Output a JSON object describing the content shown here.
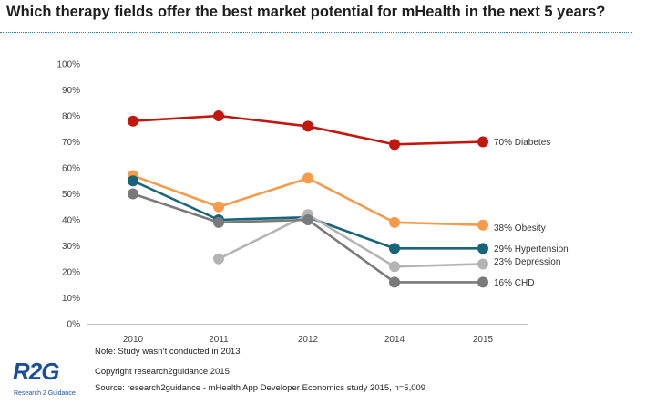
{
  "title": "Which therapy fields offer the best market potential for mHealth in the next 5 years?",
  "chart_data": {
    "type": "line",
    "x": [
      "2010",
      "2011",
      "2012",
      "2014",
      "2015"
    ],
    "ylim": [
      0,
      100
    ],
    "yticks": [
      "0%",
      "10%",
      "20%",
      "30%",
      "40%",
      "50%",
      "60%",
      "70%",
      "80%",
      "90%",
      "100%"
    ],
    "grid": false,
    "series": [
      {
        "name": "Diabetes",
        "end_label": "70%  Diabetes",
        "color": "#c0170f",
        "values": [
          78,
          80,
          76,
          69,
          70
        ]
      },
      {
        "name": "Obesity",
        "end_label": "38%  Obesity",
        "color": "#f79a4a",
        "values": [
          57,
          45,
          56,
          39,
          38
        ]
      },
      {
        "name": "Hypertension",
        "end_label": "29%  Hypertension",
        "color": "#17657a",
        "values": [
          55,
          40,
          41,
          29,
          29
        ]
      },
      {
        "name": "Depression",
        "end_label": "23%  Depression",
        "color": "#b4b4b4",
        "values": [
          null,
          25,
          42,
          22,
          23
        ]
      },
      {
        "name": "CHD",
        "end_label": "16%  CHD",
        "color": "#7a7a7a",
        "values": [
          50,
          39,
          40,
          16,
          16
        ]
      }
    ]
  },
  "footnotes": {
    "note": "Note: Study wasn’t conducted in 2013",
    "copyright": "Copyright research2guidance 2015",
    "source": "Source: research2guidance - mHealth App Developer Economics study 2015, n=5,009"
  },
  "logo": {
    "mark": "R2G",
    "subtitle": "Research 2 Guidance",
    "color": "#1b4f9c"
  }
}
